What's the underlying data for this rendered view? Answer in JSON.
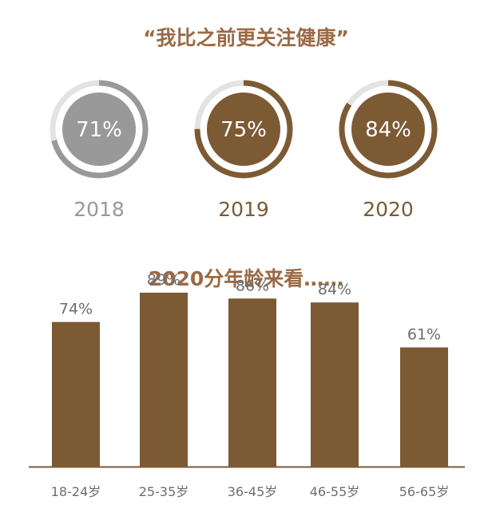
{
  "section1": {
    "title": "“我比之前更关注健康”"
  },
  "section2": {
    "title": "2020分年龄来看……"
  },
  "colors": {
    "gray": "#999999",
    "gray_track": "#e3e3e3",
    "brown": "#7c5a34",
    "title": "#9b6a45",
    "axis": "#7c5a34"
  },
  "chart_data": [
    {
      "type": "pie",
      "title": "“我比之前更关注健康”",
      "items": [
        {
          "year": "2018",
          "value": 71,
          "label": "71%",
          "color": "#999999"
        },
        {
          "year": "2019",
          "value": 75,
          "label": "75%",
          "color": "#7c5a34"
        },
        {
          "year": "2020",
          "value": 84,
          "label": "84%",
          "color": "#7c5a34"
        }
      ]
    },
    {
      "type": "bar",
      "title": "2020分年龄来看……",
      "categories": [
        "18-24岁",
        "25-35岁",
        "36-45岁",
        "46-55岁",
        "56-65岁"
      ],
      "values": [
        74,
        89,
        86,
        84,
        61
      ],
      "labels": [
        "74%",
        "89%",
        "86%",
        "84%",
        "61%"
      ],
      "ylim": [
        0,
        100
      ],
      "grid": false
    }
  ]
}
